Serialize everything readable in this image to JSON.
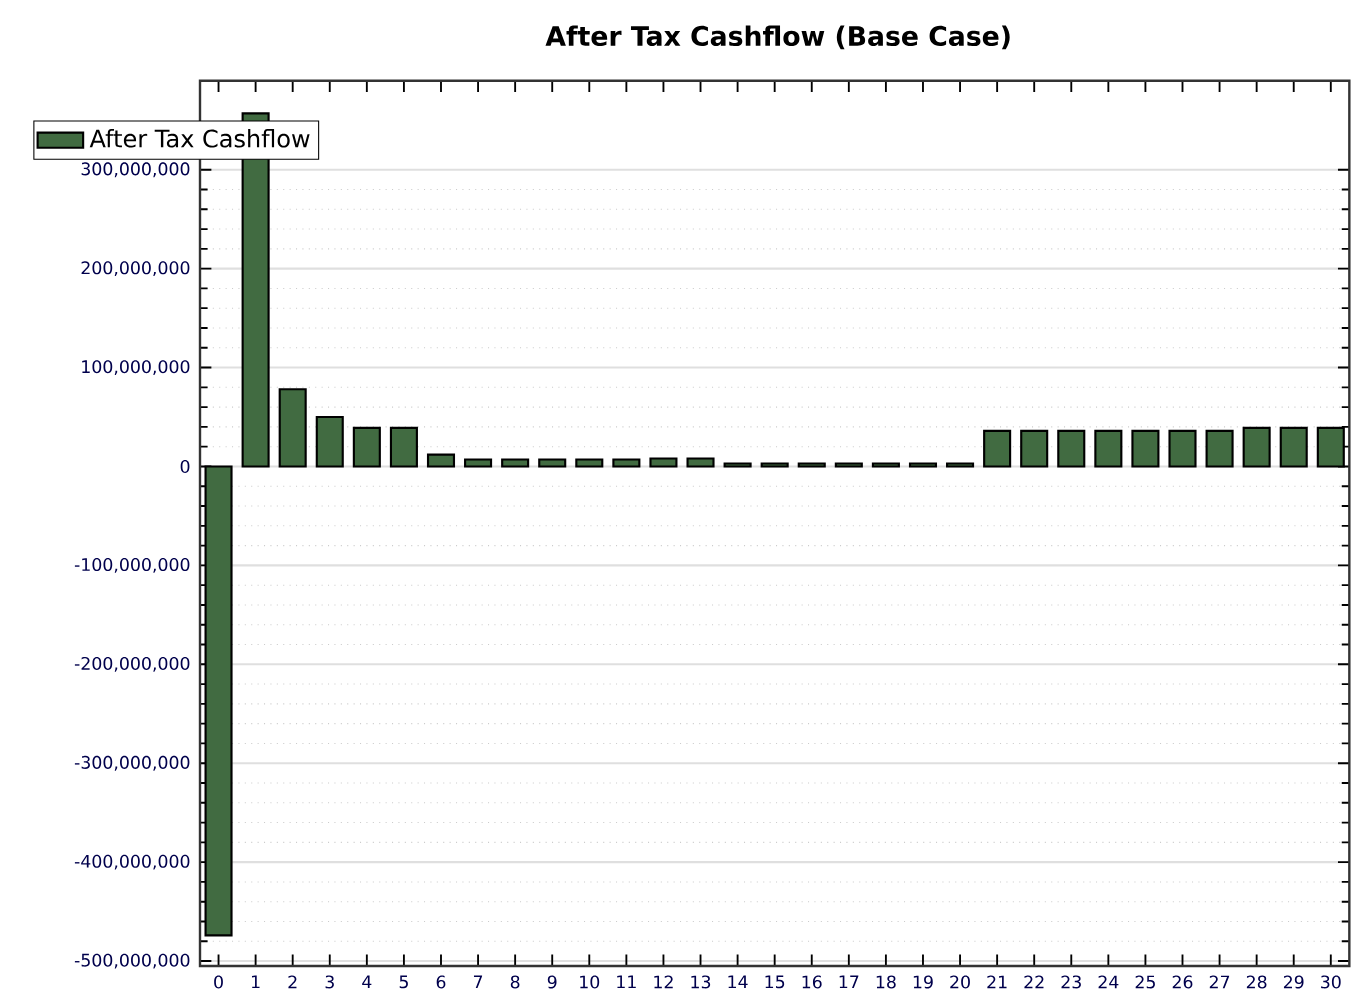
{
  "chart_data": {
    "type": "bar",
    "title": "After Tax Cashflow (Base Case)",
    "categories": [
      "0",
      "1",
      "2",
      "3",
      "4",
      "5",
      "6",
      "7",
      "8",
      "9",
      "10",
      "11",
      "12",
      "13",
      "14",
      "15",
      "16",
      "17",
      "18",
      "19",
      "20",
      "21",
      "22",
      "23",
      "24",
      "25",
      "26",
      "27",
      "28",
      "29",
      "30"
    ],
    "series": [
      {
        "name": "After Tax Cashflow",
        "color": "#416b41",
        "values": [
          -474000000,
          357000000,
          78000000,
          50000000,
          39000000,
          39000000,
          12000000,
          7000000,
          7000000,
          7000000,
          7000000,
          7000000,
          8000000,
          8000000,
          3000000,
          3000000,
          3000000,
          3000000,
          3000000,
          3000000,
          3000000,
          36000000,
          36000000,
          36000000,
          36000000,
          36000000,
          36000000,
          36000000,
          39000000,
          39000000,
          39000000
        ]
      }
    ],
    "ylim": [
      -505000000,
      390000000
    ],
    "yticks": [
      {
        "value": -500000000,
        "label": "-500,000,000"
      },
      {
        "value": -400000000,
        "label": "-400,000,000"
      },
      {
        "value": -300000000,
        "label": "-300,000,000"
      },
      {
        "value": -200000000,
        "label": "-200,000,000"
      },
      {
        "value": -100000000,
        "label": "-100,000,000"
      },
      {
        "value": 0,
        "label": "0"
      },
      {
        "value": 100000000,
        "label": "100,000,000"
      },
      {
        "value": 200000000,
        "label": "200,000,000"
      },
      {
        "value": 300000000,
        "label": "300,000,000"
      }
    ],
    "grid": "y",
    "legend": "top left"
  }
}
